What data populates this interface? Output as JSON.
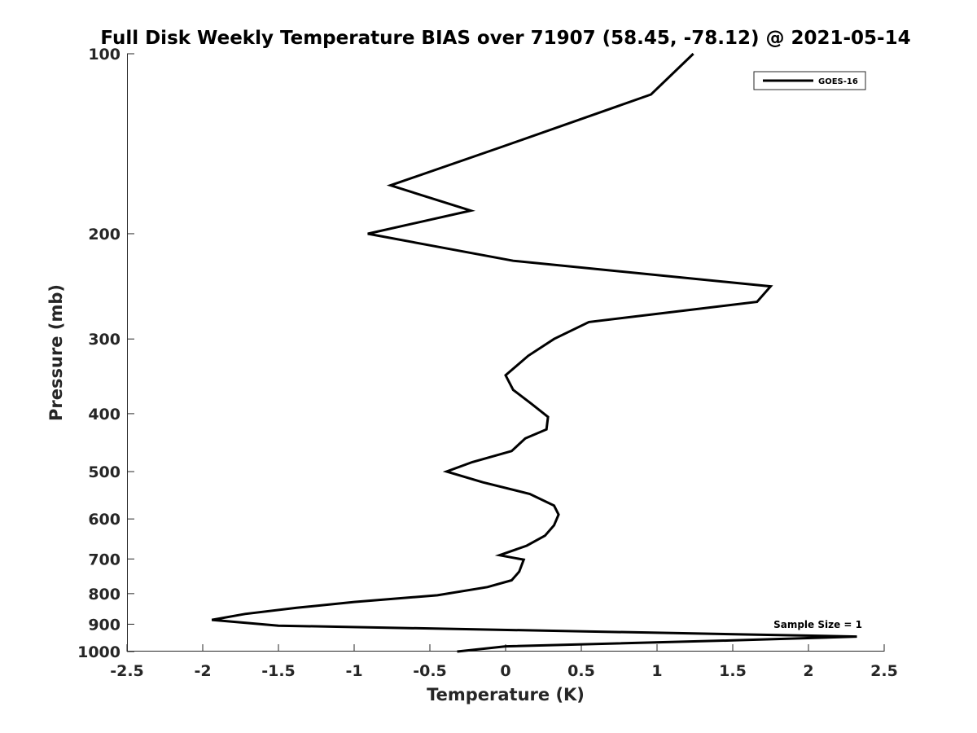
{
  "chart_data": {
    "type": "line",
    "title": "Full Disk Weekly Temperature BIAS over 71907 (58.45, -78.12) @ 2021-05-14",
    "xlabel": "Temperature (K)",
    "ylabel": "Pressure (mb)",
    "xlim": [
      -2.5,
      2.5
    ],
    "ylim": [
      100,
      1000
    ],
    "y_scale": "log",
    "y_reversed": true,
    "x_ticks": [
      "-2.5",
      "-2",
      "-1.5",
      "-1",
      "-0.5",
      "0",
      "0.5",
      "1",
      "1.5",
      "2",
      "2.5"
    ],
    "y_ticks": [
      "100",
      "200",
      "300",
      "400",
      "500",
      "600",
      "700",
      "800",
      "900",
      "1000"
    ],
    "grid": false,
    "legend_position": "top-right",
    "annotation": "Sample Size = 1",
    "series": [
      {
        "name": "GOES-16",
        "color": "#000000",
        "points": [
          {
            "x": 1.24,
            "p": 100
          },
          {
            "x": 0.96,
            "p": 117
          },
          {
            "x": -0.02,
            "p": 143
          },
          {
            "x": -0.76,
            "p": 166
          },
          {
            "x": -0.23,
            "p": 183
          },
          {
            "x": -0.91,
            "p": 200
          },
          {
            "x": 0.05,
            "p": 222
          },
          {
            "x": 1.75,
            "p": 245
          },
          {
            "x": 1.66,
            "p": 260
          },
          {
            "x": 0.55,
            "p": 281
          },
          {
            "x": 0.32,
            "p": 300
          },
          {
            "x": 0.15,
            "p": 320
          },
          {
            "x": 0.0,
            "p": 345
          },
          {
            "x": 0.05,
            "p": 365
          },
          {
            "x": 0.17,
            "p": 385
          },
          {
            "x": 0.28,
            "p": 405
          },
          {
            "x": 0.27,
            "p": 425
          },
          {
            "x": 0.13,
            "p": 440
          },
          {
            "x": 0.04,
            "p": 462
          },
          {
            "x": -0.22,
            "p": 482
          },
          {
            "x": -0.39,
            "p": 500
          },
          {
            "x": -0.15,
            "p": 521
          },
          {
            "x": 0.16,
            "p": 545
          },
          {
            "x": 0.32,
            "p": 570
          },
          {
            "x": 0.35,
            "p": 590
          },
          {
            "x": 0.32,
            "p": 615
          },
          {
            "x": 0.26,
            "p": 640
          },
          {
            "x": 0.14,
            "p": 665
          },
          {
            "x": -0.04,
            "p": 690
          },
          {
            "x": 0.12,
            "p": 702
          },
          {
            "x": 0.09,
            "p": 735
          },
          {
            "x": 0.04,
            "p": 760
          },
          {
            "x": -0.12,
            "p": 780
          },
          {
            "x": -0.45,
            "p": 805
          },
          {
            "x": -1.0,
            "p": 826
          },
          {
            "x": -1.38,
            "p": 845
          },
          {
            "x": -1.72,
            "p": 865
          },
          {
            "x": -1.94,
            "p": 885
          },
          {
            "x": -1.5,
            "p": 905
          },
          {
            "x": 1.0,
            "p": 930
          },
          {
            "x": 2.32,
            "p": 944
          },
          {
            "x": 1.5,
            "p": 958
          },
          {
            "x": 0.0,
            "p": 980
          },
          {
            "x": -0.32,
            "p": 1000
          }
        ]
      }
    ]
  }
}
